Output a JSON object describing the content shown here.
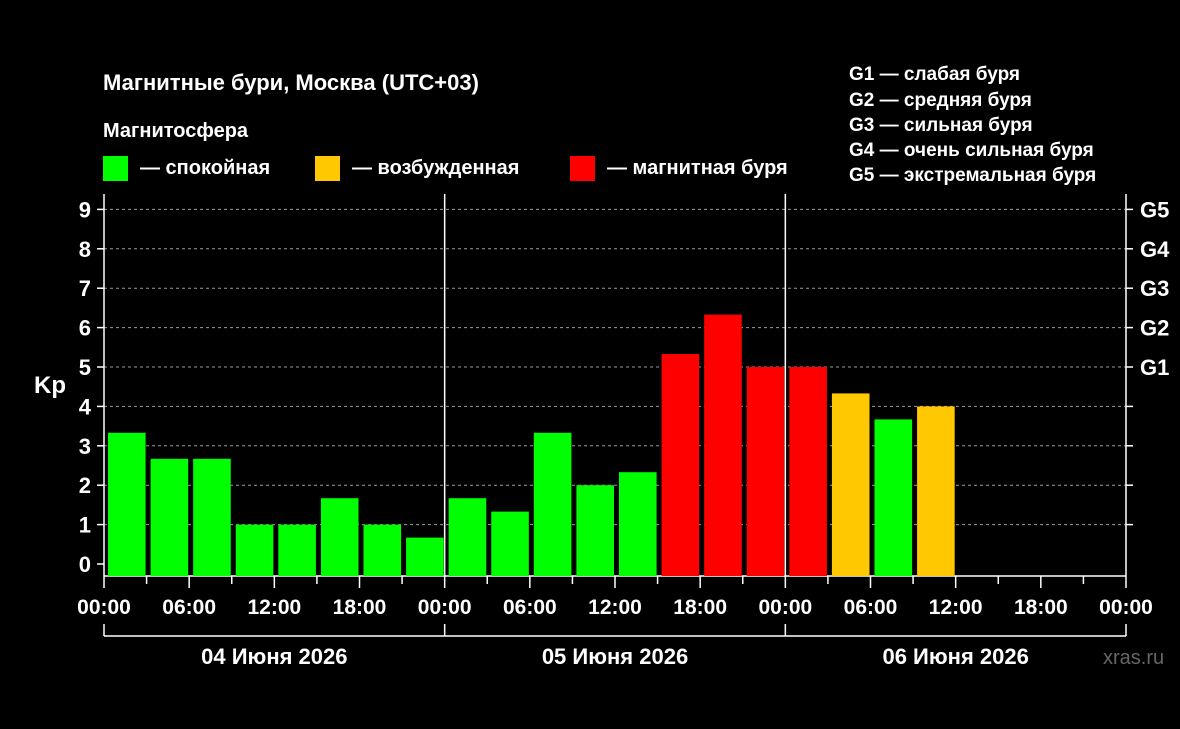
{
  "title": "Магнитные бури, Москва (UTC+03)",
  "legend_heading": "Магнитосфера",
  "legend": [
    {
      "label": "— спокойная",
      "color": "#00ff00"
    },
    {
      "label": "— возбужденная",
      "color": "#ffc800"
    },
    {
      "label": "— магнитная буря",
      "color": "#ff0000"
    }
  ],
  "storm_scale": [
    "G1 — слабая буря",
    "G2 — средняя буря",
    "G3 — сильная буря",
    "G4 — очень сильная буря",
    "G5 — экстремальная буря"
  ],
  "watermark": "xras.ru",
  "chart_data": {
    "type": "bar",
    "ylabel": "Kp",
    "ylim": [
      0,
      9
    ],
    "yticks": [
      0,
      1,
      2,
      3,
      4,
      5,
      6,
      7,
      8,
      9
    ],
    "right_axis": [
      {
        "label": "G1",
        "value": 5
      },
      {
        "label": "G2",
        "value": 6
      },
      {
        "label": "G3",
        "value": 7
      },
      {
        "label": "G4",
        "value": 8
      },
      {
        "label": "G5",
        "value": 9
      }
    ],
    "grid": "horizontal-dashed",
    "x_tick_labels": [
      "00:00",
      "06:00",
      "12:00",
      "18:00",
      "00:00",
      "06:00",
      "12:00",
      "18:00",
      "00:00",
      "06:00",
      "12:00",
      "18:00",
      "00:00"
    ],
    "days": [
      "04 Июня 2026",
      "05 Июня 2026",
      "06 Июня 2026"
    ],
    "interval_hours": 3,
    "colors": {
      "quiet": "#00ff00",
      "active": "#ffc800",
      "storm": "#ff0000"
    },
    "bars": [
      {
        "day": "04 Июня 2026",
        "start": "00:00",
        "kp": 3.33,
        "status": "quiet"
      },
      {
        "day": "04 Июня 2026",
        "start": "03:00",
        "kp": 2.67,
        "status": "quiet"
      },
      {
        "day": "04 Июня 2026",
        "start": "06:00",
        "kp": 2.67,
        "status": "quiet"
      },
      {
        "day": "04 Июня 2026",
        "start": "09:00",
        "kp": 1.0,
        "status": "quiet"
      },
      {
        "day": "04 Июня 2026",
        "start": "12:00",
        "kp": 1.0,
        "status": "quiet"
      },
      {
        "day": "04 Июня 2026",
        "start": "15:00",
        "kp": 1.67,
        "status": "quiet"
      },
      {
        "day": "04 Июня 2026",
        "start": "18:00",
        "kp": 1.0,
        "status": "quiet"
      },
      {
        "day": "04 Июня 2026",
        "start": "21:00",
        "kp": 0.67,
        "status": "quiet"
      },
      {
        "day": "05 Июня 2026",
        "start": "00:00",
        "kp": 1.67,
        "status": "quiet"
      },
      {
        "day": "05 Июня 2026",
        "start": "03:00",
        "kp": 1.33,
        "status": "quiet"
      },
      {
        "day": "05 Июня 2026",
        "start": "06:00",
        "kp": 3.33,
        "status": "quiet"
      },
      {
        "day": "05 Июня 2026",
        "start": "09:00",
        "kp": 2.0,
        "status": "quiet"
      },
      {
        "day": "05 Июня 2026",
        "start": "12:00",
        "kp": 2.33,
        "status": "quiet"
      },
      {
        "day": "05 Июня 2026",
        "start": "15:00",
        "kp": 5.33,
        "status": "storm"
      },
      {
        "day": "05 Июня 2026",
        "start": "18:00",
        "kp": 6.33,
        "status": "storm"
      },
      {
        "day": "05 Июня 2026",
        "start": "21:00",
        "kp": 5.0,
        "status": "storm"
      },
      {
        "day": "06 Июня 2026",
        "start": "00:00",
        "kp": 5.0,
        "status": "storm"
      },
      {
        "day": "06 Июня 2026",
        "start": "03:00",
        "kp": 4.33,
        "status": "active"
      },
      {
        "day": "06 Июня 2026",
        "start": "06:00",
        "kp": 3.67,
        "status": "quiet"
      },
      {
        "day": "06 Июня 2026",
        "start": "09:00",
        "kp": 4.0,
        "status": "active"
      }
    ]
  }
}
